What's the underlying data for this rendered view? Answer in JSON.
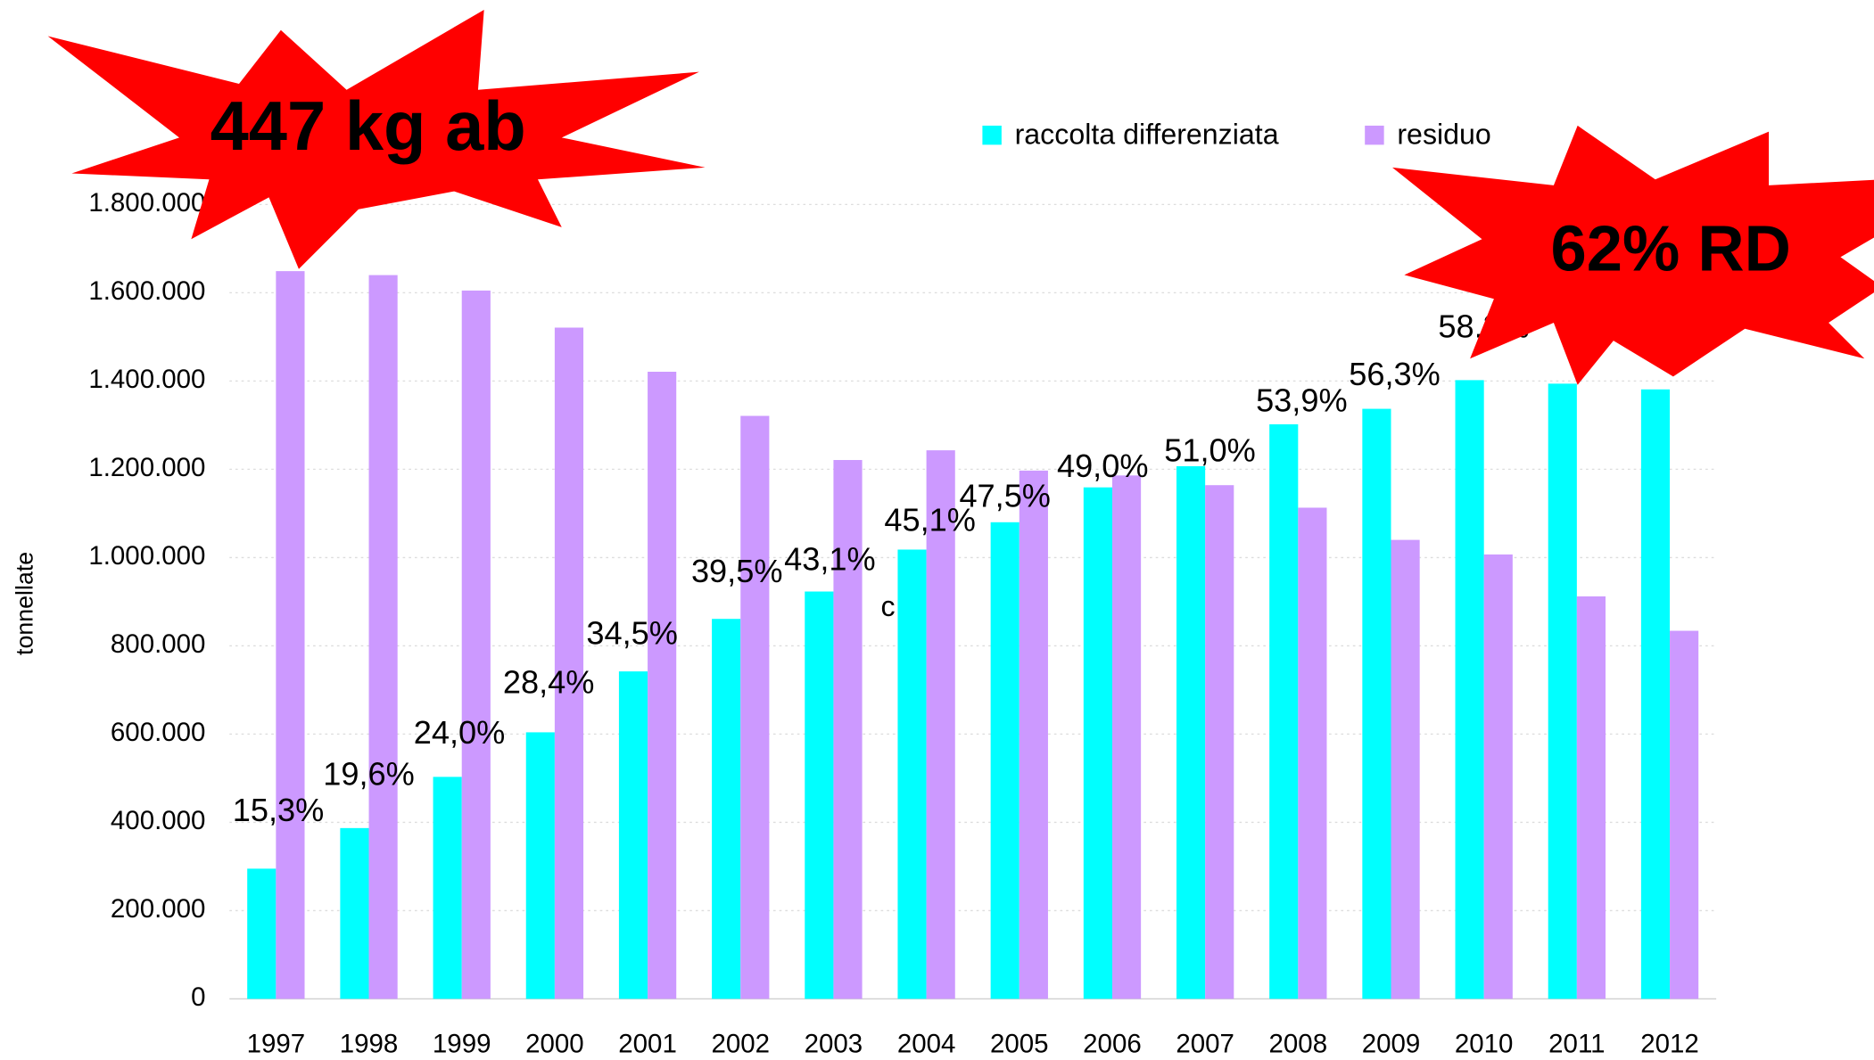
{
  "chart_data": {
    "type": "bar",
    "y_axis_label": "tonnellate",
    "categories": [
      "1997",
      "1998",
      "1999",
      "2000",
      "2001",
      "2002",
      "2003",
      "2004",
      "2005",
      "2006",
      "2007",
      "2008",
      "2009",
      "2010",
      "2011",
      "2012"
    ],
    "series": [
      {
        "name": "raccolta differenziata",
        "color": "#00ffff",
        "values": [
          295000,
          387000,
          503000,
          604000,
          742000,
          861000,
          923000,
          1018000,
          1080000,
          1159000,
          1207000,
          1302000,
          1337000,
          1402000,
          1394000,
          1381000
        ]
      },
      {
        "name": "residuo",
        "color": "#cc99ff",
        "values": [
          1649000,
          1640000,
          1605000,
          1521000,
          1421000,
          1321000,
          1221000,
          1243000,
          1197000,
          1186000,
          1164000,
          1113000,
          1040000,
          1007000,
          912000,
          834000
        ]
      }
    ],
    "percent_labels": [
      "15,3%",
      "19,6%",
      "24,0%",
      "28,4%",
      "34,5%",
      "39,5%",
      "43,1%",
      "45,1%",
      "47,5%",
      "49,0%",
      "51,0%",
      "53,9%",
      "56,3%",
      "58,3%"
    ],
    "ylim": [
      0,
      1800000
    ],
    "yticks": [
      0,
      {
        "value": 200000,
        "label": "200.000"
      },
      {
        "value": 400000,
        "label": "400.000"
      },
      {
        "value": 600000,
        "label": "600.000"
      },
      {
        "value": 800000,
        "label": "800.000"
      },
      {
        "value": 1000000,
        "label": "1.000.000"
      },
      {
        "value": 1200000,
        "label": "1.200.000"
      },
      {
        "value": 1400000,
        "label": "1.400.000"
      },
      {
        "value": 1600000,
        "label": "1.600.000"
      },
      {
        "value": 1800000,
        "label": "1.800.000"
      }
    ],
    "grid": true,
    "legend": "top",
    "annotations": [
      "447 kg ab",
      "62% RD",
      "c"
    ]
  }
}
